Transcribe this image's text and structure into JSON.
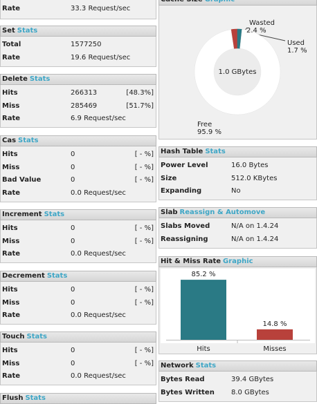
{
  "left_top": {
    "rows": [
      [
        "Rate",
        "33.3 Request/sec"
      ]
    ]
  },
  "left_panels": [
    {
      "title": "Set",
      "link": "Stats",
      "rows": [
        [
          "Total",
          "1577250"
        ],
        [
          "Rate",
          "19.6 Request/sec"
        ]
      ]
    },
    {
      "title": "Delete",
      "link": "Stats",
      "rows": [
        [
          "Hits",
          "266313",
          "[48.3%]"
        ],
        [
          "Miss",
          "285469",
          "[51.7%]"
        ],
        [
          "Rate",
          "6.9 Request/sec"
        ]
      ]
    },
    {
      "title": "Cas",
      "link": "Stats",
      "rows": [
        [
          "Hits",
          "0",
          "[ - %]"
        ],
        [
          "Miss",
          "0",
          "[ - %]"
        ],
        [
          "Bad Value",
          "0",
          "[ - %]"
        ],
        [
          "Rate",
          "0.0 Request/sec"
        ]
      ]
    },
    {
      "title": "Increment",
      "link": "Stats",
      "rows": [
        [
          "Hits",
          "0",
          "[ - %]"
        ],
        [
          "Miss",
          "0",
          "[ - %]"
        ],
        [
          "Rate",
          "0.0 Request/sec"
        ]
      ]
    },
    {
      "title": "Decrement",
      "link": "Stats",
      "rows": [
        [
          "Hits",
          "0",
          "[ - %]"
        ],
        [
          "Miss",
          "0",
          "[ - %]"
        ],
        [
          "Rate",
          "0.0 Request/sec"
        ]
      ]
    },
    {
      "title": "Touch",
      "link": "Stats",
      "rows": [
        [
          "Hits",
          "0",
          "[ - %]"
        ],
        [
          "Miss",
          "0",
          "[ - %]"
        ],
        [
          "Rate",
          "0.0 Request/sec"
        ]
      ]
    },
    {
      "title": "Flush",
      "link": "Stats",
      "rows": []
    }
  ],
  "right_panels": [
    {
      "title": "Cache Size",
      "link": "Graphic",
      "rows": []
    },
    {
      "title": "Hash Table",
      "link": "Stats",
      "rows": [
        [
          "Power Level",
          "16.0 Bytes"
        ],
        [
          "Size",
          "512.0 KBytes"
        ],
        [
          "Expanding",
          "No"
        ]
      ]
    },
    {
      "title": "Slab",
      "link": "Reassign & Automove",
      "rows": [
        [
          "Slabs Moved",
          "N/A on 1.4.24"
        ],
        [
          "Reassigning",
          "N/A on 1.4.24"
        ]
      ]
    },
    {
      "title": "Hit & Miss Rate",
      "link": "Graphic",
      "rows": []
    },
    {
      "title": "Network",
      "link": "Stats",
      "rows": [
        [
          "Bytes Read",
          "39.4 GBytes"
        ],
        [
          "Bytes Written",
          "8.0 GBytes"
        ]
      ]
    }
  ],
  "chart_data": [
    {
      "type": "pie",
      "categories": [
        "Wasted",
        "Used",
        "Free"
      ],
      "values": [
        2.4,
        1.7,
        95.9
      ],
      "value_labels": [
        "2.4 %",
        "1.7 %",
        "95.9 %"
      ],
      "colors": [
        "#b8413b",
        "#2a7a85",
        "#ffffff"
      ],
      "center_label": "1.0 GBytes"
    },
    {
      "type": "bar",
      "categories": [
        "Hits",
        "Misses"
      ],
      "values": [
        85.2,
        14.8
      ],
      "value_labels": [
        "85.2 %",
        "14.8 %"
      ],
      "colors": [
        "#2a7a85",
        "#b8413b"
      ],
      "ylim": [
        0,
        100
      ]
    }
  ]
}
